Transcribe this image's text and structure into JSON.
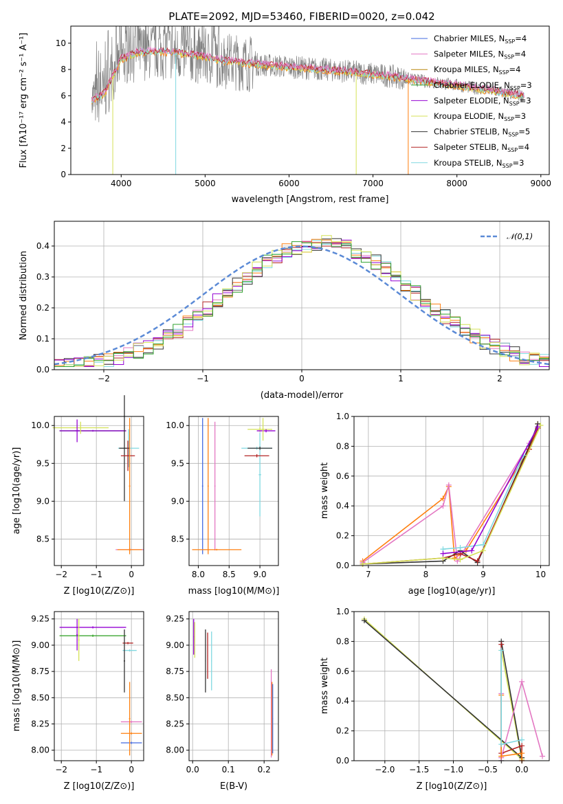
{
  "title": "PLATE=2092, MJD=53460, FIBERID=0020, z=0.042",
  "colors": {
    "chabrier_miles": "#4169e1",
    "salpeter_miles": "#e377c2",
    "kroupa_miles": "#b8860b",
    "chabrier_elodie": "#2ca02c",
    "salpeter_elodie": "#9400d3",
    "kroupa_elodie": "#d4e157",
    "chabrier_stelib": "#333333",
    "salpeter_stelib": "#b22222",
    "kroupa_stelib": "#7fd8e0",
    "orange": "#ff7f0e",
    "data_gray": "#808080",
    "gaussian": "#5b8ad6"
  },
  "chart_data": [
    {
      "id": "spectrum",
      "type": "line",
      "xlabel": "wavelength [Angstrom, rest frame]",
      "ylabel": "Flux [fλ10⁻¹⁷ erg cm⁻² s⁻¹ A⁻¹]",
      "xlim": [
        3400,
        9100
      ],
      "ylim": [
        0,
        11.3
      ],
      "xticks": [
        4000,
        5000,
        6000,
        7000,
        8000,
        9000
      ],
      "yticks": [
        0,
        2,
        4,
        6,
        8,
        10
      ],
      "legend": [
        "Chabrier MILES, N_SSP=4",
        "Salpeter MILES, N_SSP=4",
        "Kroupa MILES, N_SSP=4",
        "Chabrier ELODIE, N_SSP=3",
        "Salpeter ELODIE, N_SSP=3",
        "Kroupa ELODIE, N_SSP=3",
        "Chabrier STELIB, N_SSP=5",
        "Salpeter STELIB, N_SSP=4",
        "Kroupa STELIB, N_SSP=3"
      ],
      "legend_placement": "top-right",
      "continuum": {
        "x": [
          3650,
          3800,
          3900,
          4000,
          4200,
          4500,
          4800,
          5200,
          5600,
          6000,
          6400,
          6800,
          7200,
          7500,
          8000,
          8500,
          8800
        ],
        "y": [
          5.6,
          6.2,
          7.5,
          8.8,
          9.3,
          9.4,
          9.2,
          8.7,
          8.4,
          8.2,
          8.0,
          7.8,
          7.5,
          7.2,
          6.8,
          6.3,
          6.0
        ]
      }
    },
    {
      "id": "residuals",
      "type": "line",
      "xlabel": "(data-model)/error",
      "ylabel": "Normed distribution",
      "xlim": [
        -2.5,
        2.5
      ],
      "ylim": [
        0,
        0.48
      ],
      "xticks": [
        -2,
        -1,
        0,
        1,
        2
      ],
      "yticks": [
        0.0,
        0.1,
        0.2,
        0.3,
        0.4
      ],
      "legend": [
        "𝒩(0,1)"
      ],
      "legend_placement": "top-right",
      "grid": true
    },
    {
      "id": "age_vs_Z",
      "type": "scatter",
      "xlabel": "Z [log10(Z/Z⊙)]",
      "ylabel": "age  [log10(age/yr)]",
      "xlim": [
        -2.2,
        0.35
      ],
      "ylim": [
        8.15,
        10.12
      ],
      "xticks": [
        -2,
        -1,
        0
      ],
      "yticks": [
        8.5,
        9.0,
        9.5,
        10.0
      ],
      "grid": true
    },
    {
      "id": "age_vs_mass",
      "type": "scatter",
      "xlabel": "mass [log10(M/M⊙)]",
      "xlim": [
        7.85,
        9.3
      ],
      "ylim": [
        8.15,
        10.12
      ],
      "xticks": [
        8.0,
        8.5,
        9.0
      ],
      "yticks": [
        8.5,
        9.0,
        9.5,
        10.0
      ],
      "grid": true
    },
    {
      "id": "weight_vs_age",
      "type": "line",
      "xlabel": "age  [log10(age/yr)]",
      "ylabel": "mass weight",
      "xlim": [
        6.75,
        10.15
      ],
      "ylim": [
        0,
        1.0
      ],
      "xticks": [
        7,
        8,
        9,
        10
      ],
      "yticks": [
        0.0,
        0.2,
        0.4,
        0.6,
        0.8,
        1.0
      ],
      "grid": true
    },
    {
      "id": "mass_vs_Z",
      "type": "scatter",
      "xlabel": "Z [log10(Z/Z⊙)]",
      "ylabel": "mass [log10(M/M⊙)]",
      "xlim": [
        -2.2,
        0.35
      ],
      "ylim": [
        7.9,
        9.32
      ],
      "xticks": [
        -2,
        -1,
        0
      ],
      "yticks": [
        8.0,
        8.25,
        8.5,
        8.75,
        9.0,
        9.25
      ],
      "grid": true
    },
    {
      "id": "mass_vs_ebv",
      "type": "scatter",
      "xlabel": "E(B-V)",
      "xlim": [
        -0.01,
        0.24
      ],
      "ylim": [
        7.9,
        9.32
      ],
      "xticks": [
        0.0,
        0.1,
        0.2
      ],
      "yticks": [
        8.0,
        8.25,
        8.5,
        8.75,
        9.0,
        9.25
      ],
      "grid": true
    },
    {
      "id": "weight_vs_Z",
      "type": "line",
      "xlabel": "Z [log10(Z/Z⊙)]",
      "ylabel": "mass weight",
      "xlim": [
        -2.45,
        0.4
      ],
      "ylim": [
        0,
        1.0
      ],
      "xticks": [
        -2.0,
        -1.5,
        -1.0,
        -0.5,
        0.0
      ],
      "yticks": [
        0.0,
        0.2,
        0.4,
        0.6,
        0.8,
        1.0
      ],
      "grid": true
    }
  ]
}
